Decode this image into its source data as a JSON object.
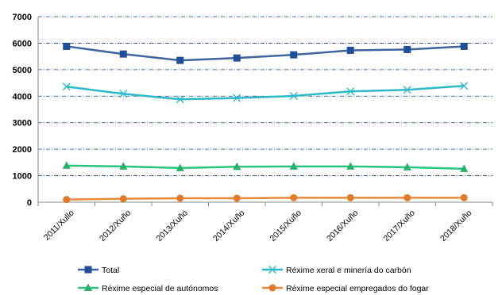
{
  "chart_data": {
    "type": "line",
    "categories": [
      "2011/Xullo",
      "2012/Xuño",
      "2013/Xuño",
      "2014/Xuño",
      "2015/Xuño",
      "2016/Xuño",
      "2017/Xuño",
      "2018/Xuño"
    ],
    "ylim": [
      0,
      7000
    ],
    "yticks": [
      0,
      1000,
      2000,
      3000,
      4000,
      5000,
      6000,
      7000
    ],
    "grid": true,
    "legend": "bottom",
    "series": [
      {
        "name": "Total",
        "color": "#4064a0",
        "marker": "square",
        "marker_color": "#1f4e9a",
        "values": [
          5880,
          5590,
          5350,
          5440,
          5560,
          5730,
          5760,
          5880
        ]
      },
      {
        "name": "Réxime xeral e minería do carbón",
        "color": "#2cb9c9",
        "marker": "x",
        "marker_color": "#2cb9c9",
        "values": [
          4360,
          4090,
          3880,
          3930,
          4010,
          4180,
          4240,
          4390
        ]
      },
      {
        "name": "Réxime especial de autónomos",
        "color": "#2bc47d",
        "marker": "triangle",
        "marker_color": "#26b068",
        "values": [
          1380,
          1350,
          1290,
          1340,
          1350,
          1350,
          1320,
          1260
        ]
      },
      {
        "name": "Réxime especial empregados do fogar",
        "color": "#e6893a",
        "marker": "circle",
        "marker_color": "#e07b2a",
        "values": [
          100,
          130,
          150,
          150,
          170,
          170,
          170,
          170
        ]
      }
    ]
  }
}
